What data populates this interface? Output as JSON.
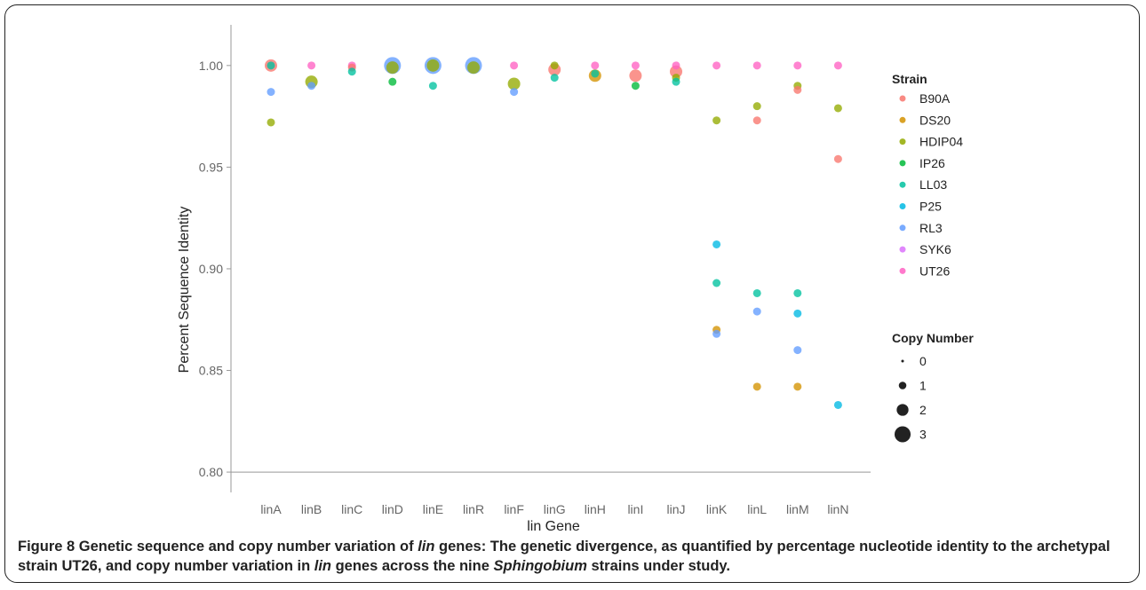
{
  "chart_data": {
    "type": "scatter",
    "xlabel": "lin Gene",
    "ylabel": "Percent Sequence Identity",
    "categories": [
      "linA",
      "linB",
      "linC",
      "linD",
      "linE",
      "linR",
      "linF",
      "linG",
      "linH",
      "linI",
      "linJ",
      "linK",
      "linL",
      "linM",
      "linN"
    ],
    "ylim": [
      0.79,
      1.02
    ],
    "yticks": [
      "0.80",
      "0.85",
      "0.90",
      "0.95",
      "1.00"
    ],
    "ytick_values": [
      0.8,
      0.85,
      0.9,
      0.95,
      1.0
    ],
    "grid": false,
    "legend_position": "right",
    "strain_legend_title": "Strain",
    "size_legend_title": "Copy Number",
    "size_levels": [
      0,
      1,
      2,
      3
    ],
    "size_labels": [
      "0",
      "1",
      "2",
      "3"
    ],
    "strains": [
      {
        "name": "B90A",
        "color": "#F8766D"
      },
      {
        "name": "DS20",
        "color": "#D39200"
      },
      {
        "name": "HDIP04",
        "color": "#93AA00"
      },
      {
        "name": "IP26",
        "color": "#00BA38"
      },
      {
        "name": "LL03",
        "color": "#00C19F"
      },
      {
        "name": "P25",
        "color": "#00B9E3"
      },
      {
        "name": "RL3",
        "color": "#619CFF"
      },
      {
        "name": "SYK6",
        "color": "#DB72FB"
      },
      {
        "name": "UT26",
        "color": "#FF61C3"
      }
    ],
    "points": [
      {
        "gene": "linA",
        "strain": "B90A",
        "y": 1.0,
        "copy": 2
      },
      {
        "gene": "linA",
        "strain": "LL03",
        "y": 1.0,
        "copy": 1
      },
      {
        "gene": "linA",
        "strain": "RL3",
        "y": 0.987,
        "copy": 1
      },
      {
        "gene": "linA",
        "strain": "HDIP04",
        "y": 0.972,
        "copy": 1
      },
      {
        "gene": "linB",
        "strain": "UT26",
        "y": 1.0,
        "copy": 1
      },
      {
        "gene": "linB",
        "strain": "HDIP04",
        "y": 0.992,
        "copy": 2
      },
      {
        "gene": "linB",
        "strain": "RL3",
        "y": 0.99,
        "copy": 1
      },
      {
        "gene": "linC",
        "strain": "UT26",
        "y": 1.0,
        "copy": 1
      },
      {
        "gene": "linC",
        "strain": "B90A",
        "y": 0.999,
        "copy": 1
      },
      {
        "gene": "linC",
        "strain": "LL03",
        "y": 0.997,
        "copy": 1
      },
      {
        "gene": "linD",
        "strain": "RL3",
        "y": 1.0,
        "copy": 3
      },
      {
        "gene": "linD",
        "strain": "HDIP04",
        "y": 0.999,
        "copy": 2
      },
      {
        "gene": "linD",
        "strain": "IP26",
        "y": 0.992,
        "copy": 1
      },
      {
        "gene": "linE",
        "strain": "RL3",
        "y": 1.0,
        "copy": 3
      },
      {
        "gene": "linE",
        "strain": "HDIP04",
        "y": 1.0,
        "copy": 2
      },
      {
        "gene": "linE",
        "strain": "LL03",
        "y": 0.99,
        "copy": 1
      },
      {
        "gene": "linR",
        "strain": "RL3",
        "y": 1.0,
        "copy": 3
      },
      {
        "gene": "linR",
        "strain": "HDIP04",
        "y": 0.999,
        "copy": 2
      },
      {
        "gene": "linF",
        "strain": "UT26",
        "y": 1.0,
        "copy": 1
      },
      {
        "gene": "linF",
        "strain": "HDIP04",
        "y": 0.991,
        "copy": 2
      },
      {
        "gene": "linF",
        "strain": "RL3",
        "y": 0.987,
        "copy": 1
      },
      {
        "gene": "linG",
        "strain": "HDIP04",
        "y": 1.0,
        "copy": 1
      },
      {
        "gene": "linG",
        "strain": "B90A",
        "y": 0.998,
        "copy": 2
      },
      {
        "gene": "linG",
        "strain": "LL03",
        "y": 0.994,
        "copy": 1
      },
      {
        "gene": "linH",
        "strain": "UT26",
        "y": 1.0,
        "copy": 1
      },
      {
        "gene": "linH",
        "strain": "LL03",
        "y": 0.996,
        "copy": 1
      },
      {
        "gene": "linH",
        "strain": "DS20",
        "y": 0.995,
        "copy": 2
      },
      {
        "gene": "linI",
        "strain": "UT26",
        "y": 1.0,
        "copy": 1
      },
      {
        "gene": "linI",
        "strain": "B90A",
        "y": 0.995,
        "copy": 2
      },
      {
        "gene": "linI",
        "strain": "IP26",
        "y": 0.99,
        "copy": 1
      },
      {
        "gene": "linJ",
        "strain": "UT26",
        "y": 1.0,
        "copy": 1
      },
      {
        "gene": "linJ",
        "strain": "B90A",
        "y": 0.997,
        "copy": 2
      },
      {
        "gene": "linJ",
        "strain": "HDIP04",
        "y": 0.994,
        "copy": 1
      },
      {
        "gene": "linJ",
        "strain": "LL03",
        "y": 0.992,
        "copy": 1
      },
      {
        "gene": "linK",
        "strain": "UT26",
        "y": 1.0,
        "copy": 1
      },
      {
        "gene": "linK",
        "strain": "HDIP04",
        "y": 0.973,
        "copy": 1
      },
      {
        "gene": "linK",
        "strain": "P25",
        "y": 0.912,
        "copy": 1
      },
      {
        "gene": "linK",
        "strain": "LL03",
        "y": 0.893,
        "copy": 1
      },
      {
        "gene": "linK",
        "strain": "DS20",
        "y": 0.87,
        "copy": 1
      },
      {
        "gene": "linK",
        "strain": "RL3",
        "y": 0.868,
        "copy": 1
      },
      {
        "gene": "linL",
        "strain": "UT26",
        "y": 1.0,
        "copy": 1
      },
      {
        "gene": "linL",
        "strain": "HDIP04",
        "y": 0.98,
        "copy": 1
      },
      {
        "gene": "linL",
        "strain": "B90A",
        "y": 0.973,
        "copy": 1
      },
      {
        "gene": "linL",
        "strain": "LL03",
        "y": 0.888,
        "copy": 1
      },
      {
        "gene": "linL",
        "strain": "RL3",
        "y": 0.879,
        "copy": 1
      },
      {
        "gene": "linL",
        "strain": "DS20",
        "y": 0.842,
        "copy": 1
      },
      {
        "gene": "linM",
        "strain": "UT26",
        "y": 1.0,
        "copy": 1
      },
      {
        "gene": "linM",
        "strain": "HDIP04",
        "y": 0.99,
        "copy": 1
      },
      {
        "gene": "linM",
        "strain": "B90A",
        "y": 0.988,
        "copy": 1
      },
      {
        "gene": "linM",
        "strain": "LL03",
        "y": 0.888,
        "copy": 1
      },
      {
        "gene": "linM",
        "strain": "P25",
        "y": 0.878,
        "copy": 1
      },
      {
        "gene": "linM",
        "strain": "RL3",
        "y": 0.86,
        "copy": 1
      },
      {
        "gene": "linM",
        "strain": "DS20",
        "y": 0.842,
        "copy": 1
      },
      {
        "gene": "linN",
        "strain": "UT26",
        "y": 1.0,
        "copy": 1
      },
      {
        "gene": "linN",
        "strain": "HDIP04",
        "y": 0.979,
        "copy": 1
      },
      {
        "gene": "linN",
        "strain": "B90A",
        "y": 0.954,
        "copy": 1
      },
      {
        "gene": "linN",
        "strain": "P25",
        "y": 0.833,
        "copy": 1
      }
    ]
  },
  "caption": {
    "label": "Figure 8",
    "part1": " Genetic sequence and copy number variation of ",
    "em1": "lin",
    "part2": " genes: The genetic divergence, as quantified by percentage nucleotide identity to the archetypal strain UT26, and copy number variation in ",
    "em2": "lin",
    "part3": " genes across the nine ",
    "em3": "Sphingobium",
    "part4": " strains under study."
  }
}
